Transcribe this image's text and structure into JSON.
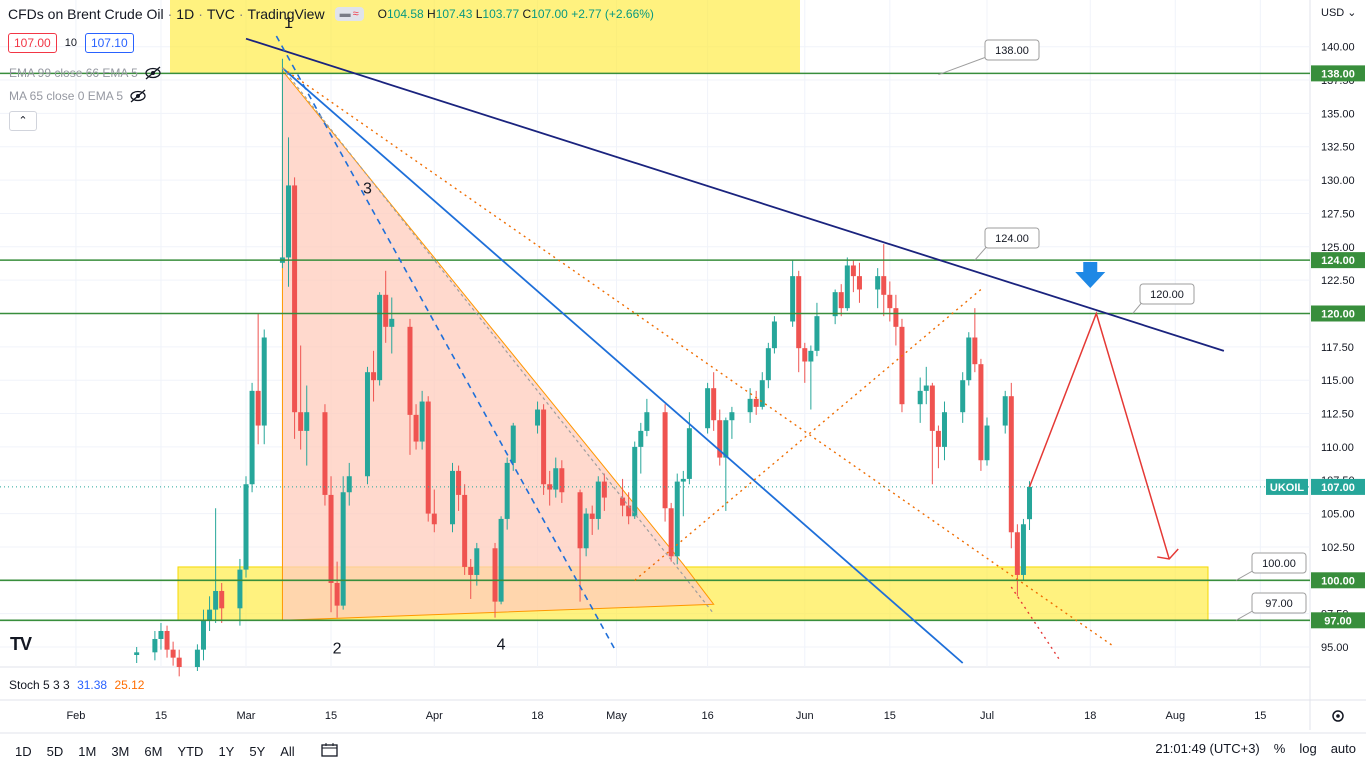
{
  "header": {
    "symbol": "CFDs on Brent Crude Oil",
    "interval": "1D",
    "exchange": "TVC",
    "provider": "TradingView",
    "mini_a": "▬",
    "mini_b": "≈",
    "ohlc": {
      "o_label": "O",
      "o": "104.58",
      "h_label": "H",
      "h": "107.43",
      "l_label": "L",
      "l": "103.77",
      "c_label": "C",
      "c": "107.00",
      "change": "+2.77 (+2.66%)"
    }
  },
  "prices": {
    "sell": "107.00",
    "spread": "10",
    "buy": "107.10"
  },
  "indicators": [
    {
      "label": "EMA 99 close 66 EMA 5"
    },
    {
      "label": "MA 65 close 0 EMA 5"
    }
  ],
  "collapse_label": "⌃",
  "stoch": {
    "label": "Stoch 5 3 3",
    "k": "31.38",
    "d": "25.12"
  },
  "timeframes": [
    "1D",
    "5D",
    "1M",
    "3M",
    "6M",
    "YTD",
    "1Y",
    "5Y",
    "All"
  ],
  "calendar_icon": "calendar-range-icon",
  "status": {
    "time": "21:01:49 (UTC+3)",
    "percent": "%",
    "log": "log",
    "auto": "auto"
  },
  "tv_logo": "TV",
  "colors": {
    "up": "#26a69a",
    "down": "#ef5350",
    "level": "#388e3c",
    "trend": "#1a237e",
    "channel": "#1e6fd9",
    "zone": "#ffeb3b",
    "triangle": "#ffccbc"
  },
  "chart_data": {
    "type": "candlestick",
    "currency": "USD",
    "x_ticks": [
      "Feb",
      "15",
      "Mar",
      "15",
      "Apr",
      "18",
      "May",
      "16",
      "Jun",
      "15",
      "Jul",
      "18",
      "Aug",
      "15"
    ],
    "y_ticks": [
      "140.00",
      "137.50",
      "135.00",
      "132.50",
      "130.00",
      "127.50",
      "125.00",
      "122.50",
      "120.00",
      "117.50",
      "115.00",
      "112.50",
      "110.00",
      "107.50",
      "105.00",
      "102.50",
      "100.00",
      "97.50",
      "95.00"
    ],
    "ylim": [
      93.5,
      143.5
    ],
    "last_price": {
      "label": "UKOIL",
      "value": "107.00"
    },
    "levels": [
      {
        "value": 138.0,
        "label": "138.00"
      },
      {
        "value": 124.0,
        "label": "124.00"
      },
      {
        "value": 120.0,
        "label": "120.00"
      },
      {
        "value": 100.0,
        "label": "100.00"
      },
      {
        "value": 97.0,
        "label": "97.00"
      }
    ],
    "wave_labels": [
      "1",
      "2",
      "3",
      "4"
    ],
    "candles": [
      {
        "d": "2022-02-11",
        "o": 94.4,
        "h": 95.0,
        "l": 93.8,
        "c": 94.6
      },
      {
        "d": "2022-02-14",
        "o": 94.6,
        "h": 96.2,
        "l": 94.0,
        "c": 95.6
      },
      {
        "d": "2022-02-15",
        "o": 95.6,
        "h": 96.8,
        "l": 94.8,
        "c": 96.2
      },
      {
        "d": "2022-02-16",
        "o": 96.2,
        "h": 96.6,
        "l": 94.2,
        "c": 94.8
      },
      {
        "d": "2022-02-17",
        "o": 94.8,
        "h": 95.4,
        "l": 93.6,
        "c": 94.2
      },
      {
        "d": "2022-02-18",
        "o": 94.2,
        "h": 94.8,
        "l": 92.8,
        "c": 93.5
      },
      {
        "d": "2022-02-21",
        "o": 93.5,
        "h": 95.2,
        "l": 93.2,
        "c": 94.8
      },
      {
        "d": "2022-02-22",
        "o": 94.8,
        "h": 97.8,
        "l": 94.0,
        "c": 97.0
      },
      {
        "d": "2022-02-23",
        "o": 97.0,
        "h": 98.8,
        "l": 96.2,
        "c": 97.8
      },
      {
        "d": "2022-02-24",
        "o": 97.8,
        "h": 105.4,
        "l": 96.8,
        "c": 99.2
      },
      {
        "d": "2022-02-25",
        "o": 99.2,
        "h": 99.8,
        "l": 96.8,
        "c": 97.9
      },
      {
        "d": "2022-02-28",
        "o": 97.9,
        "h": 101.6,
        "l": 96.6,
        "c": 100.8
      },
      {
        "d": "2022-03-01",
        "o": 100.8,
        "h": 107.8,
        "l": 100.2,
        "c": 107.2
      },
      {
        "d": "2022-03-02",
        "o": 107.2,
        "h": 114.8,
        "l": 106.6,
        "c": 114.2
      },
      {
        "d": "2022-03-03",
        "o": 114.2,
        "h": 120.0,
        "l": 110.2,
        "c": 111.6
      },
      {
        "d": "2022-03-04",
        "o": 111.6,
        "h": 118.8,
        "l": 110.2,
        "c": 118.2
      },
      {
        "d": "2022-03-07",
        "o": 123.8,
        "h": 139.1,
        "l": 123.4,
        "c": 124.2
      },
      {
        "d": "2022-03-08",
        "o": 124.2,
        "h": 133.2,
        "l": 122.0,
        "c": 129.6
      },
      {
        "d": "2022-03-09",
        "o": 129.6,
        "h": 130.2,
        "l": 110.6,
        "c": 112.6
      },
      {
        "d": "2022-03-10",
        "o": 112.6,
        "h": 117.6,
        "l": 109.8,
        "c": 111.2
      },
      {
        "d": "2022-03-11",
        "o": 111.2,
        "h": 114.6,
        "l": 108.6,
        "c": 112.6
      },
      {
        "d": "2022-03-14",
        "o": 112.6,
        "h": 113.2,
        "l": 105.6,
        "c": 106.4
      },
      {
        "d": "2022-03-15",
        "o": 106.4,
        "h": 107.8,
        "l": 97.6,
        "c": 99.8
      },
      {
        "d": "2022-03-16",
        "o": 99.8,
        "h": 101.4,
        "l": 97.2,
        "c": 98.1
      },
      {
        "d": "2022-03-17",
        "o": 98.1,
        "h": 107.8,
        "l": 97.8,
        "c": 106.6
      },
      {
        "d": "2022-03-18",
        "o": 106.6,
        "h": 108.8,
        "l": 105.6,
        "c": 107.8
      },
      {
        "d": "2022-03-21",
        "o": 107.8,
        "h": 116.0,
        "l": 107.2,
        "c": 115.6
      },
      {
        "d": "2022-03-22",
        "o": 115.6,
        "h": 117.2,
        "l": 113.4,
        "c": 115.0
      },
      {
        "d": "2022-03-23",
        "o": 115.0,
        "h": 121.6,
        "l": 114.6,
        "c": 121.4
      },
      {
        "d": "2022-03-24",
        "o": 121.4,
        "h": 123.2,
        "l": 117.8,
        "c": 119.0
      },
      {
        "d": "2022-03-25",
        "o": 119.0,
        "h": 121.2,
        "l": 117.0,
        "c": 119.6
      },
      {
        "d": "2022-03-28",
        "o": 119.0,
        "h": 119.6,
        "l": 109.4,
        "c": 112.4
      },
      {
        "d": "2022-03-29",
        "o": 112.4,
        "h": 113.2,
        "l": 109.8,
        "c": 110.4
      },
      {
        "d": "2022-03-30",
        "o": 110.4,
        "h": 114.2,
        "l": 109.8,
        "c": 113.4
      },
      {
        "d": "2022-03-31",
        "o": 113.4,
        "h": 113.8,
        "l": 104.4,
        "c": 105.0
      },
      {
        "d": "2022-04-01",
        "o": 105.0,
        "h": 106.8,
        "l": 103.6,
        "c": 104.2
      },
      {
        "d": "2022-04-04",
        "o": 104.2,
        "h": 108.8,
        "l": 103.6,
        "c": 108.2
      },
      {
        "d": "2022-04-05",
        "o": 108.2,
        "h": 108.6,
        "l": 105.2,
        "c": 106.4
      },
      {
        "d": "2022-04-06",
        "o": 106.4,
        "h": 107.2,
        "l": 100.4,
        "c": 101.0
      },
      {
        "d": "2022-04-07",
        "o": 101.0,
        "h": 101.6,
        "l": 98.6,
        "c": 100.4
      },
      {
        "d": "2022-04-08",
        "o": 100.4,
        "h": 102.8,
        "l": 99.6,
        "c": 102.4
      },
      {
        "d": "2022-04-11",
        "o": 102.4,
        "h": 102.8,
        "l": 97.2,
        "c": 98.4
      },
      {
        "d": "2022-04-12",
        "o": 98.4,
        "h": 104.8,
        "l": 98.2,
        "c": 104.6
      },
      {
        "d": "2022-04-13",
        "o": 104.6,
        "h": 109.2,
        "l": 103.8,
        "c": 108.8
      },
      {
        "d": "2022-04-14",
        "o": 108.8,
        "h": 111.8,
        "l": 108.2,
        "c": 111.6
      },
      {
        "d": "2022-04-18",
        "o": 111.6,
        "h": 113.4,
        "l": 111.0,
        "c": 112.8
      },
      {
        "d": "2022-04-19",
        "o": 112.8,
        "h": 113.2,
        "l": 106.4,
        "c": 107.2
      },
      {
        "d": "2022-04-20",
        "o": 107.2,
        "h": 108.2,
        "l": 105.6,
        "c": 106.8
      },
      {
        "d": "2022-04-21",
        "o": 106.8,
        "h": 109.2,
        "l": 106.2,
        "c": 108.4
      },
      {
        "d": "2022-04-22",
        "o": 108.4,
        "h": 109.0,
        "l": 105.8,
        "c": 106.6
      },
      {
        "d": "2022-04-25",
        "o": 106.6,
        "h": 106.8,
        "l": 98.4,
        "c": 102.4
      },
      {
        "d": "2022-04-26",
        "o": 102.4,
        "h": 105.4,
        "l": 101.8,
        "c": 105.0
      },
      {
        "d": "2022-04-27",
        "o": 105.0,
        "h": 105.6,
        "l": 103.4,
        "c": 104.6
      },
      {
        "d": "2022-04-28",
        "o": 104.6,
        "h": 107.8,
        "l": 103.8,
        "c": 107.4
      },
      {
        "d": "2022-04-29",
        "o": 107.4,
        "h": 108.0,
        "l": 105.2,
        "c": 106.2
      },
      {
        "d": "2022-05-02",
        "o": 106.2,
        "h": 107.6,
        "l": 104.8,
        "c": 105.6
      },
      {
        "d": "2022-05-03",
        "o": 105.6,
        "h": 106.6,
        "l": 104.2,
        "c": 104.8
      },
      {
        "d": "2022-05-04",
        "o": 104.8,
        "h": 110.4,
        "l": 104.6,
        "c": 110.0
      },
      {
        "d": "2022-05-05",
        "o": 110.0,
        "h": 111.8,
        "l": 108.0,
        "c": 111.2
      },
      {
        "d": "2022-05-06",
        "o": 111.2,
        "h": 113.6,
        "l": 110.8,
        "c": 112.6
      },
      {
        "d": "2022-05-09",
        "o": 112.6,
        "h": 113.2,
        "l": 104.4,
        "c": 105.4
      },
      {
        "d": "2022-05-10",
        "o": 105.4,
        "h": 105.8,
        "l": 101.4,
        "c": 101.8
      },
      {
        "d": "2022-05-11",
        "o": 101.8,
        "h": 108.0,
        "l": 101.2,
        "c": 107.4
      },
      {
        "d": "2022-05-12",
        "o": 107.4,
        "h": 108.2,
        "l": 104.8,
        "c": 107.6
      },
      {
        "d": "2022-05-13",
        "o": 107.6,
        "h": 112.6,
        "l": 107.2,
        "c": 111.4
      },
      {
        "d": "2022-05-16",
        "o": 111.4,
        "h": 114.8,
        "l": 111.0,
        "c": 114.4
      },
      {
        "d": "2022-05-17",
        "o": 114.4,
        "h": 115.6,
        "l": 111.2,
        "c": 112.0
      },
      {
        "d": "2022-05-18",
        "o": 112.0,
        "h": 112.8,
        "l": 108.6,
        "c": 109.2
      },
      {
        "d": "2022-05-19",
        "o": 109.2,
        "h": 112.2,
        "l": 105.2,
        "c": 112.0
      },
      {
        "d": "2022-05-20",
        "o": 112.0,
        "h": 113.0,
        "l": 110.6,
        "c": 112.6
      },
      {
        "d": "2022-05-23",
        "o": 112.6,
        "h": 114.4,
        "l": 111.8,
        "c": 113.6
      },
      {
        "d": "2022-05-24",
        "o": 113.6,
        "h": 114.2,
        "l": 112.4,
        "c": 113.0
      },
      {
        "d": "2022-05-25",
        "o": 113.0,
        "h": 115.6,
        "l": 112.8,
        "c": 115.0
      },
      {
        "d": "2022-05-26",
        "o": 115.0,
        "h": 117.8,
        "l": 114.4,
        "c": 117.4
      },
      {
        "d": "2022-05-27",
        "o": 117.4,
        "h": 119.8,
        "l": 117.0,
        "c": 119.4
      },
      {
        "d": "2022-05-30",
        "o": 119.4,
        "h": 124.0,
        "l": 119.0,
        "c": 122.8
      },
      {
        "d": "2022-05-31",
        "o": 122.8,
        "h": 123.2,
        "l": 115.6,
        "c": 117.4
      },
      {
        "d": "2022-06-01",
        "o": 117.4,
        "h": 117.8,
        "l": 114.8,
        "c": 116.4
      },
      {
        "d": "2022-06-02",
        "o": 116.4,
        "h": 117.6,
        "l": 112.8,
        "c": 117.2
      },
      {
        "d": "2022-06-03",
        "o": 117.2,
        "h": 120.8,
        "l": 116.8,
        "c": 119.8
      },
      {
        "d": "2022-06-06",
        "o": 119.8,
        "h": 121.8,
        "l": 119.2,
        "c": 121.6
      },
      {
        "d": "2022-06-07",
        "o": 121.6,
        "h": 122.2,
        "l": 119.8,
        "c": 120.4
      },
      {
        "d": "2022-06-08",
        "o": 120.4,
        "h": 124.2,
        "l": 120.2,
        "c": 123.6
      },
      {
        "d": "2022-06-09",
        "o": 123.6,
        "h": 124.0,
        "l": 121.6,
        "c": 122.8
      },
      {
        "d": "2022-06-10",
        "o": 122.8,
        "h": 123.8,
        "l": 120.8,
        "c": 121.8
      },
      {
        "d": "2022-06-13",
        "o": 121.8,
        "h": 123.4,
        "l": 120.4,
        "c": 122.8
      },
      {
        "d": "2022-06-14",
        "o": 122.8,
        "h": 125.2,
        "l": 119.8,
        "c": 121.4
      },
      {
        "d": "2022-06-15",
        "o": 121.4,
        "h": 122.4,
        "l": 119.4,
        "c": 120.4
      },
      {
        "d": "2022-06-16",
        "o": 120.4,
        "h": 121.4,
        "l": 117.6,
        "c": 119.0
      },
      {
        "d": "2022-06-17",
        "o": 119.0,
        "h": 119.6,
        "l": 112.6,
        "c": 113.2
      },
      {
        "d": "2022-06-20",
        "o": 113.2,
        "h": 115.2,
        "l": 111.8,
        "c": 114.2
      },
      {
        "d": "2022-06-21",
        "o": 114.2,
        "h": 116.0,
        "l": 113.2,
        "c": 114.6
      },
      {
        "d": "2022-06-22",
        "o": 114.6,
        "h": 114.8,
        "l": 107.2,
        "c": 111.2
      },
      {
        "d": "2022-06-23",
        "o": 111.2,
        "h": 111.6,
        "l": 108.4,
        "c": 110.0
      },
      {
        "d": "2022-06-24",
        "o": 110.0,
        "h": 113.4,
        "l": 109.0,
        "c": 112.6
      },
      {
        "d": "2022-06-27",
        "o": 112.6,
        "h": 115.6,
        "l": 111.8,
        "c": 115.0
      },
      {
        "d": "2022-06-28",
        "o": 115.0,
        "h": 118.6,
        "l": 114.6,
        "c": 118.2
      },
      {
        "d": "2022-06-29",
        "o": 118.2,
        "h": 120.4,
        "l": 115.6,
        "c": 116.2
      },
      {
        "d": "2022-06-30",
        "o": 116.2,
        "h": 116.6,
        "l": 108.2,
        "c": 109.0
      },
      {
        "d": "2022-07-01",
        "o": 109.0,
        "h": 112.2,
        "l": 108.6,
        "c": 111.6
      },
      {
        "d": "2022-07-04",
        "o": 111.6,
        "h": 114.2,
        "l": 111.0,
        "c": 113.8
      },
      {
        "d": "2022-07-05",
        "o": 113.8,
        "h": 114.8,
        "l": 102.4,
        "c": 103.6
      },
      {
        "d": "2022-07-06",
        "o": 103.6,
        "h": 104.2,
        "l": 98.8,
        "c": 100.4
      },
      {
        "d": "2022-07-07",
        "o": 100.4,
        "h": 104.6,
        "l": 100.0,
        "c": 104.2
      },
      {
        "d": "2022-07-08",
        "o": 104.58,
        "h": 107.43,
        "l": 103.77,
        "c": 107.0
      }
    ],
    "projection": [
      {
        "d": "2022-07-08",
        "v": 107.0
      },
      {
        "d": "2022-07-19",
        "v": 120.0
      },
      {
        "d": "2022-07-31",
        "v": 101.6
      }
    ]
  }
}
